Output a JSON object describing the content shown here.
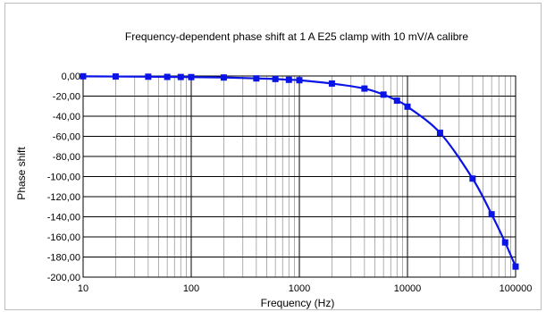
{
  "chart_data": {
    "type": "line",
    "title": "Frequency-dependent phase shift at 1 A E25 clamp with 10 mV/A calibre",
    "xlabel": "Frequency (Hz)",
    "ylabel": "Phase shift",
    "x_scale": "log",
    "xlim": [
      10,
      100000
    ],
    "ylim": [
      -200,
      0
    ],
    "x_ticks": [
      "10",
      "100",
      "1000",
      "10000",
      "100000"
    ],
    "y_ticks": [
      "0,00",
      "-20,00",
      "-40,00",
      "-60,00",
      "-80,00",
      "-100,00",
      "-120,00",
      "-140,00",
      "-160,00",
      "-180,00",
      "-200,00"
    ],
    "grid": true,
    "legend": "none",
    "series": [
      {
        "color": "#0a14e6",
        "x": [
          10,
          20,
          40,
          60,
          80,
          100,
          200,
          400,
          600,
          800,
          1000,
          2000,
          4000,
          6000,
          8000,
          10000,
          20000,
          40000,
          60000,
          80000,
          100000
        ],
        "y": [
          -0.3,
          -0.5,
          -0.7,
          -0.9,
          -1.0,
          -1.1,
          -1.5,
          -2.4,
          -3.0,
          -3.8,
          -4.2,
          -7.5,
          -12.5,
          -18.5,
          -24.5,
          -30.5,
          -56.5,
          -102.0,
          -137.5,
          -165.5,
          -189.5
        ]
      }
    ]
  }
}
